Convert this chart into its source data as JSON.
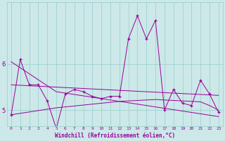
{
  "x": [
    0,
    1,
    2,
    3,
    4,
    5,
    6,
    7,
    8,
    9,
    10,
    11,
    12,
    13,
    14,
    15,
    16,
    17,
    18,
    19,
    20,
    21,
    22,
    23
  ],
  "y_main": [
    4.9,
    6.1,
    5.55,
    5.55,
    5.2,
    4.6,
    5.35,
    5.45,
    5.4,
    5.3,
    5.25,
    5.3,
    5.3,
    6.55,
    7.05,
    6.55,
    6.95,
    5.0,
    5.45,
    5.15,
    5.1,
    5.65,
    5.35,
    4.95
  ],
  "y_trend1": [
    6.05,
    5.92,
    5.79,
    5.66,
    5.53,
    5.4,
    5.37,
    5.34,
    5.31,
    5.28,
    5.25,
    5.22,
    5.19,
    5.16,
    5.13,
    5.1,
    5.07,
    5.04,
    5.01,
    4.98,
    4.95,
    4.92,
    4.89,
    4.86
  ],
  "y_trend2": [
    5.55,
    5.54,
    5.53,
    5.52,
    5.51,
    5.5,
    5.49,
    5.48,
    5.47,
    5.46,
    5.45,
    5.44,
    5.43,
    5.42,
    5.41,
    5.4,
    5.39,
    5.38,
    5.37,
    5.36,
    5.35,
    5.34,
    5.33,
    5.32
  ],
  "y_trend3": [
    4.9,
    4.93,
    4.96,
    4.99,
    5.02,
    5.05,
    5.07,
    5.09,
    5.11,
    5.13,
    5.15,
    5.17,
    5.19,
    5.2,
    5.21,
    5.22,
    5.23,
    5.22,
    5.21,
    5.2,
    5.19,
    5.18,
    5.1,
    5.0
  ],
  "color": "#990099",
  "bg_color": "#cce8e8",
  "grid_color": "#99cccc",
  "xlabel": "Windchill (Refroidissement éolien,°C)",
  "ylim": [
    4.65,
    7.35
  ],
  "yticks": [
    5,
    6
  ],
  "xlim": [
    -0.5,
    23.5
  ],
  "font_color": "#990099"
}
